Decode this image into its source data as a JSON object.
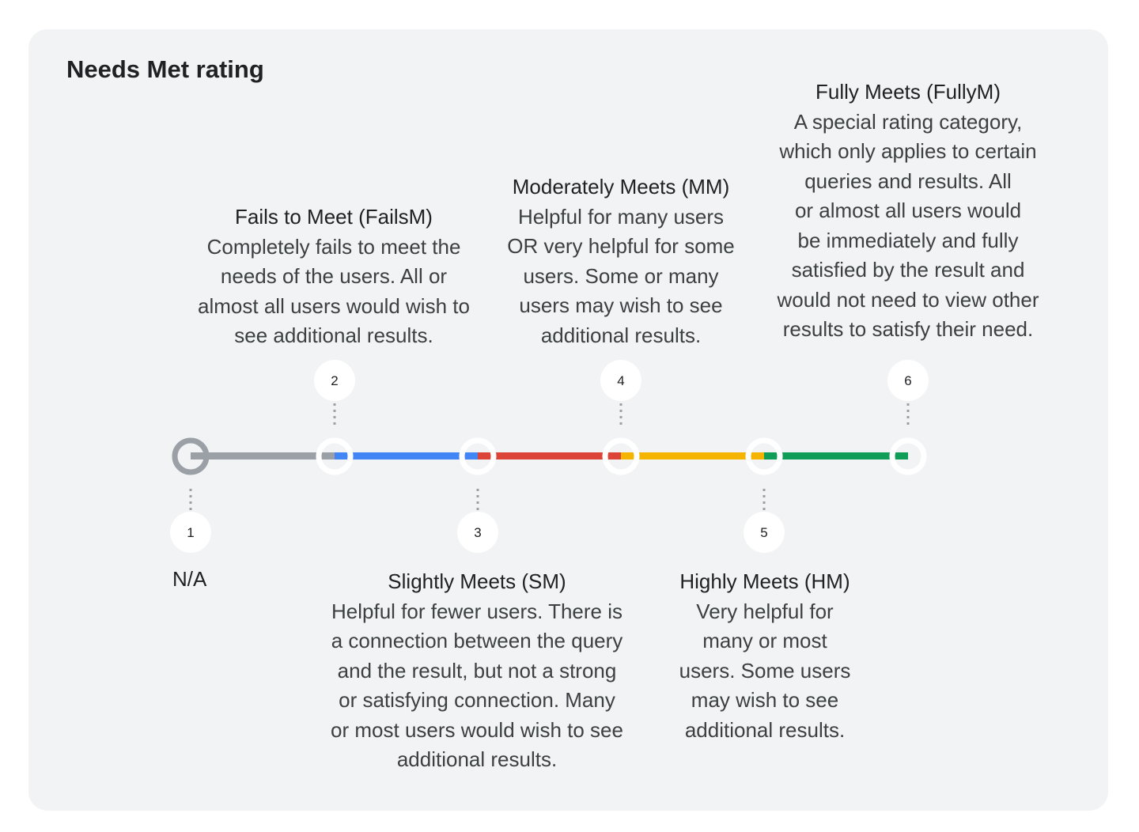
{
  "title": "Needs Met rating",
  "colors": {
    "card_bg": "#f1f3f4",
    "gray": "#9aa0a6",
    "blue": "#4285f4",
    "red": "#db4437",
    "yellow": "#f4b400",
    "green": "#0f9d58"
  },
  "ratings": [
    {
      "number": "1",
      "name": "N/A",
      "description": []
    },
    {
      "number": "2",
      "name": "Fails to Meet (FailsM)",
      "description": [
        "Completely fails to meet the",
        "needs of the users. All or",
        "almost all users would wish to",
        "see additional results."
      ]
    },
    {
      "number": "3",
      "name": "Slightly Meets (SM)",
      "description": [
        "Helpful for fewer users. There is",
        "a connection between the query",
        "and the result, but not a strong",
        "or satisfying connection. Many",
        "or most users would wish to see",
        "additional results."
      ]
    },
    {
      "number": "4",
      "name": "Moderately Meets (MM)",
      "description": [
        "Helpful for many users",
        "OR very helpful for some",
        "users. Some or many",
        "users may wish to see",
        "additional results."
      ]
    },
    {
      "number": "5",
      "name": "Highly Meets (HM)",
      "description": [
        "Very helpful for",
        "many or most",
        "users. Some users",
        "may wish to see",
        "additional results."
      ]
    },
    {
      "number": "6",
      "name": "Fully Meets (FullyM)",
      "description": [
        "A special rating category,",
        "which only applies to certain",
        "queries and results. All",
        "or almost all users would",
        "be immediately and fully",
        "satisfied by the result and",
        "would not need to view other",
        "results to satisfy their need."
      ]
    }
  ]
}
